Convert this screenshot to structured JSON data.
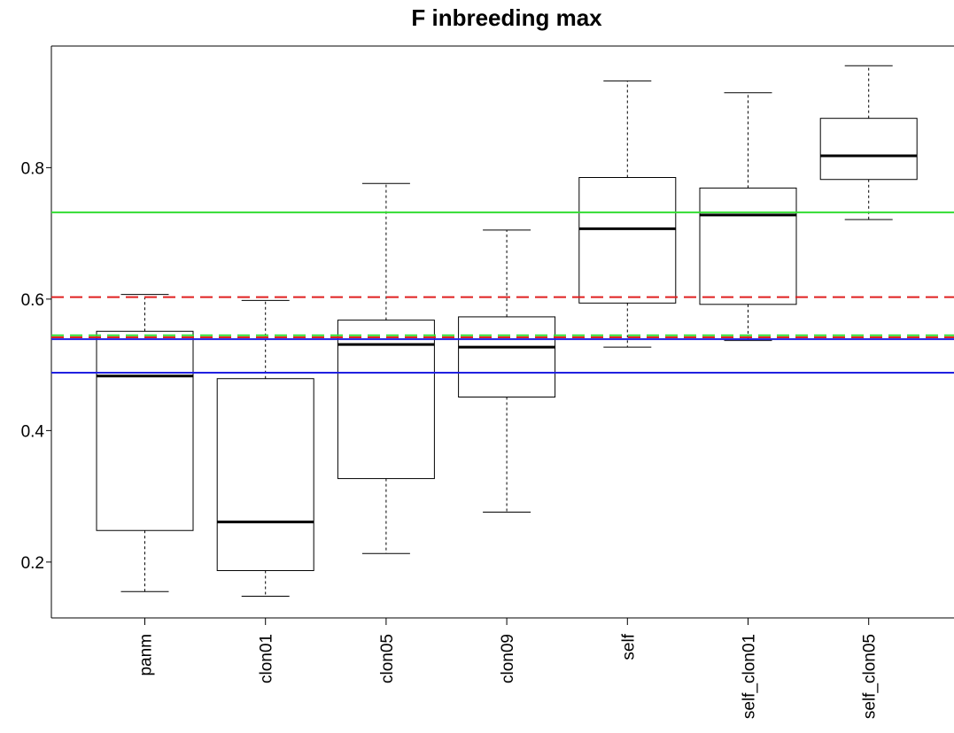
{
  "chart_data": {
    "type": "boxplot",
    "title": "F inbreeding max",
    "xlabel": "",
    "ylabel": "",
    "ylim": [
      0.115,
      0.985
    ],
    "y_ticks": [
      0.2,
      0.4,
      0.6,
      0.8
    ],
    "y_tick_labels": [
      "0.2",
      "0.4",
      "0.6",
      "0.8"
    ],
    "grid": false,
    "legend": "none",
    "categories": [
      "panm",
      "clon01",
      "clon05",
      "clon09",
      "self",
      "self_clon01",
      "self_clon05"
    ],
    "boxes": [
      {
        "min": 0.155,
        "q1": 0.248,
        "median": 0.483,
        "q3": 0.551,
        "max": 0.607
      },
      {
        "min": 0.148,
        "q1": 0.187,
        "median": 0.261,
        "q3": 0.479,
        "max": 0.598
      },
      {
        "min": 0.213,
        "q1": 0.327,
        "median": 0.531,
        "q3": 0.568,
        "max": 0.776
      },
      {
        "min": 0.276,
        "q1": 0.451,
        "median": 0.527,
        "q3": 0.573,
        "max": 0.705
      },
      {
        "min": 0.527,
        "q1": 0.594,
        "median": 0.707,
        "q3": 0.785,
        "max": 0.932
      },
      {
        "min": 0.537,
        "q1": 0.592,
        "median": 0.728,
        "q3": 0.769,
        "max": 0.914
      },
      {
        "min": 0.721,
        "q1": 0.782,
        "median": 0.818,
        "q3": 0.875,
        "max": 0.955
      }
    ],
    "reference_lines": [
      {
        "y": 0.732,
        "color": "#33dd33",
        "style": "solid"
      },
      {
        "y": 0.603,
        "color": "#e02020",
        "style": "dashed"
      },
      {
        "y": 0.545,
        "color": "#33dd33",
        "style": "dashed"
      },
      {
        "y": 0.542,
        "color": "#e02020",
        "style": "dashed"
      },
      {
        "y": 0.539,
        "color": "#2020e0",
        "style": "solid"
      },
      {
        "y": 0.488,
        "color": "#2020e0",
        "style": "solid"
      }
    ]
  }
}
